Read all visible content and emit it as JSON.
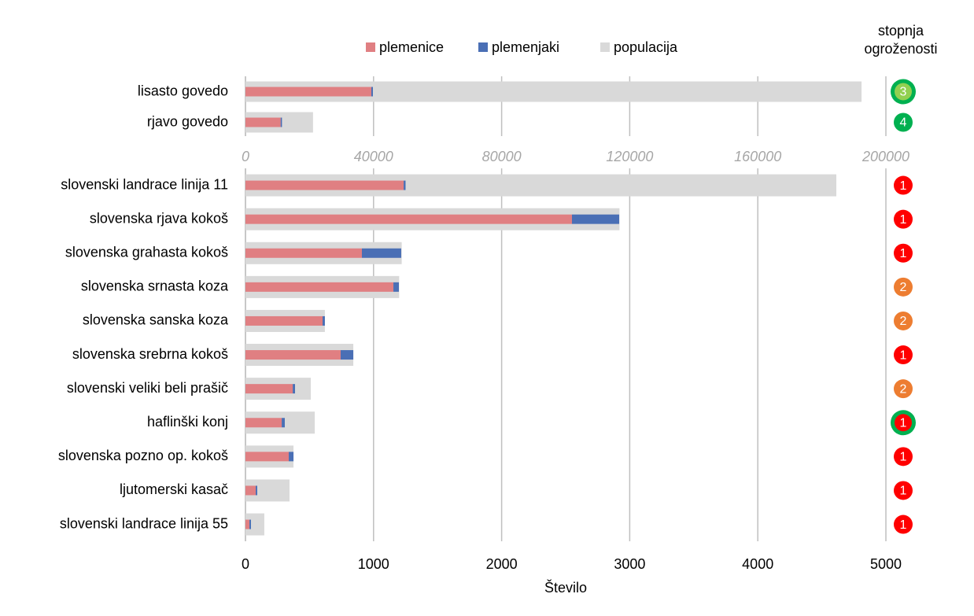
{
  "chart_data": [
    {
      "type": "bar",
      "orientation": "horizontal",
      "threat_title": "stopnja ogroženosti",
      "categories": [
        "lisasto govedo",
        "rjavo govedo"
      ],
      "series": [
        {
          "name": "plemenice",
          "color": "#e07f82",
          "values": [
            39300,
            11000
          ]
        },
        {
          "name": "plemenjaki",
          "color": "#4a6fb5",
          "values": [
            500,
            400
          ]
        },
        {
          "name": "populacija",
          "color": "#d9d9d9",
          "values": [
            192400,
            21100
          ]
        }
      ],
      "threat": [
        3,
        4
      ],
      "threat_colors": [
        "#92d050",
        "#00b050"
      ],
      "threat_rings": [
        "#00b050",
        null
      ],
      "xlim": [
        0,
        200000
      ],
      "xticks": [
        0,
        40000,
        80000,
        120000,
        160000,
        200000
      ],
      "grid": true
    },
    {
      "type": "bar",
      "orientation": "horizontal",
      "x_label": "Število",
      "categories": [
        "slovenski landrace linija 11",
        "slovenska rjava kokoš",
        "slovenska grahasta kokoš",
        "slovenska srnasta koza",
        "slovenska sanska koza",
        "slovenska srebrna kokoš",
        "slovenski veliki beli prašič",
        "haflinški konj",
        "slovenska pozno op. kokoš",
        "ljutomerski kasač",
        "slovenski landrace linija 55"
      ],
      "series": [
        {
          "color": "#e07f82",
          "values": [
            1235,
            2549,
            909,
            1155,
            602,
            743,
            369,
            283,
            338,
            80,
            31
          ]
        },
        {
          "color": "#4a6fb5",
          "values": [
            15,
            369,
            307,
            43,
            18,
            99,
            18,
            24,
            37,
            12,
            12
          ]
        },
        {
          "color": "#d9d9d9",
          "values": [
            4613,
            2920,
            1220,
            1200,
            620,
            842,
            510,
            541,
            375,
            344,
            147
          ]
        }
      ],
      "threat": [
        1,
        1,
        1,
        2,
        2,
        1,
        2,
        1,
        1,
        1,
        1
      ],
      "threat_colors": [
        "#ff0000",
        "#ff0000",
        "#ff0000",
        "#ed7d31",
        "#ed7d31",
        "#ff0000",
        "#ed7d31",
        "#ff0000",
        "#ff0000",
        "#ff0000",
        "#ff0000"
      ],
      "threat_rings": [
        null,
        null,
        null,
        null,
        null,
        null,
        null,
        "#00b050",
        null,
        null,
        null
      ],
      "xlim": [
        0,
        5000
      ],
      "xticks": [
        0,
        1000,
        2000,
        3000,
        4000,
        5000
      ],
      "grid": true
    }
  ]
}
